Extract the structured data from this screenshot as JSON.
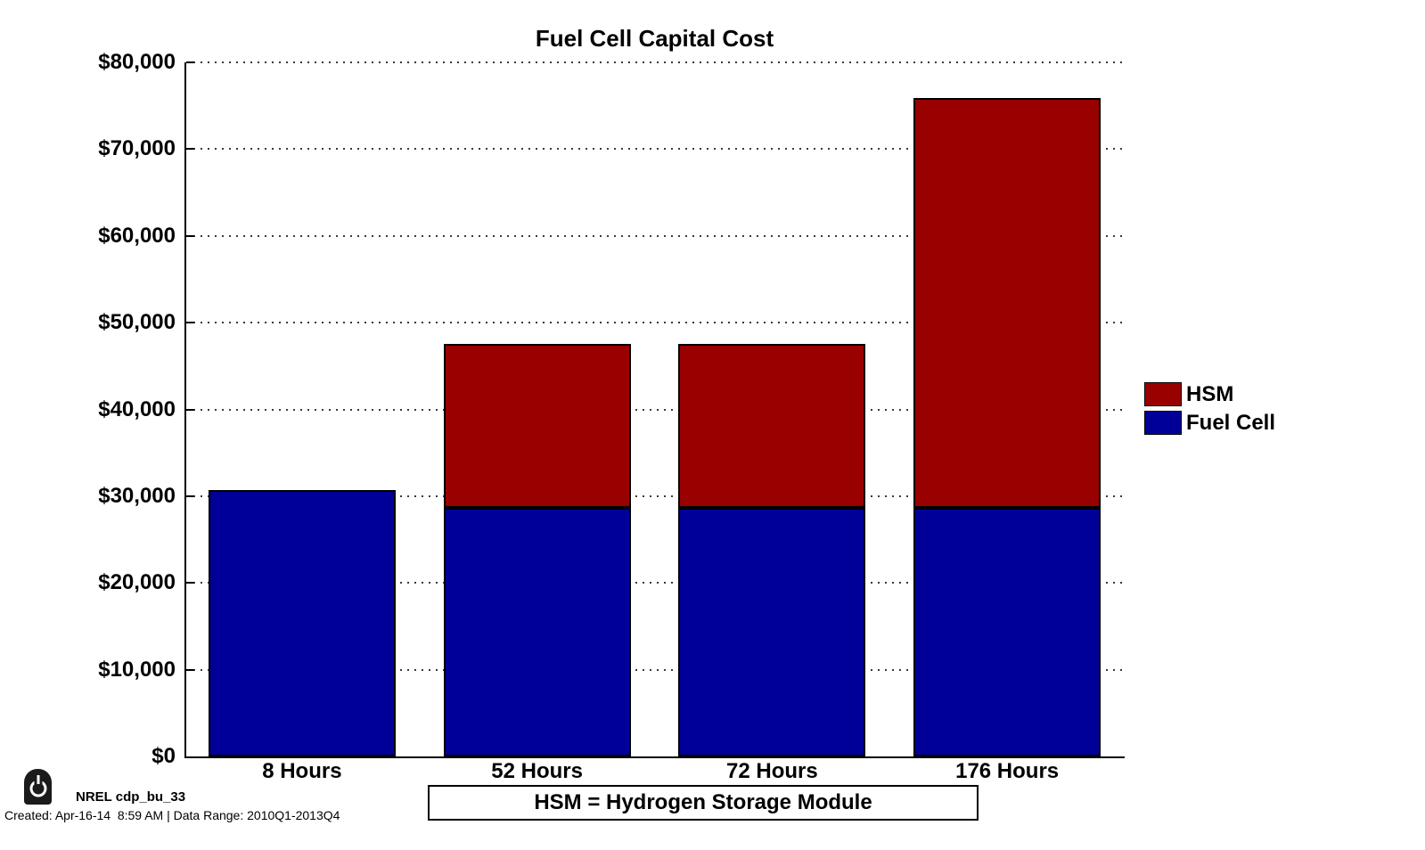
{
  "title": "Fuel Cell Capital Cost",
  "chart_data": {
    "type": "bar",
    "stacked": true,
    "title": "Fuel Cell Capital Cost",
    "categories": [
      "8 Hours",
      "52 Hours",
      "72 Hours",
      "176 Hours"
    ],
    "series": [
      {
        "name": "Fuel Cell",
        "color": "#000099",
        "values": [
          30700,
          28700,
          28700,
          28700
        ]
      },
      {
        "name": "HSM",
        "color": "#990000",
        "values": [
          0,
          18900,
          18900,
          47200
        ]
      }
    ],
    "stack_totals": [
      30700,
      47600,
      47600,
      75900
    ],
    "xlabel": "",
    "ylabel": "",
    "ylim": [
      0,
      80000
    ],
    "yticks": [
      {
        "value": 0,
        "label": "$0"
      },
      {
        "value": 10000,
        "label": "$10,000"
      },
      {
        "value": 20000,
        "label": "$20,000"
      },
      {
        "value": 30000,
        "label": "$30,000"
      },
      {
        "value": 40000,
        "label": "$40,000"
      },
      {
        "value": 50000,
        "label": "$50,000"
      },
      {
        "value": 60000,
        "label": "$60,000"
      },
      {
        "value": 70000,
        "label": "$70,000"
      },
      {
        "value": 80000,
        "label": "$80,000"
      }
    ],
    "grid": "horizontal-dotted",
    "legend_position": "right-outside"
  },
  "legend": {
    "items": [
      {
        "label": "HSM",
        "color": "#990000"
      },
      {
        "label": "Fuel Cell",
        "color": "#000099"
      }
    ]
  },
  "note_box": {
    "text": "HSM = Hydrogen Storage Module"
  },
  "footer": {
    "icon": "power-icon",
    "source": "NREL cdp_bu_33",
    "created": "Created: Apr-16-14  8:59 AM | Data Range: 2010Q1-2013Q4"
  },
  "colors": {
    "hsm": "#990000",
    "fuel_cell": "#000099",
    "axis": "#000000",
    "background": "#ffffff"
  }
}
